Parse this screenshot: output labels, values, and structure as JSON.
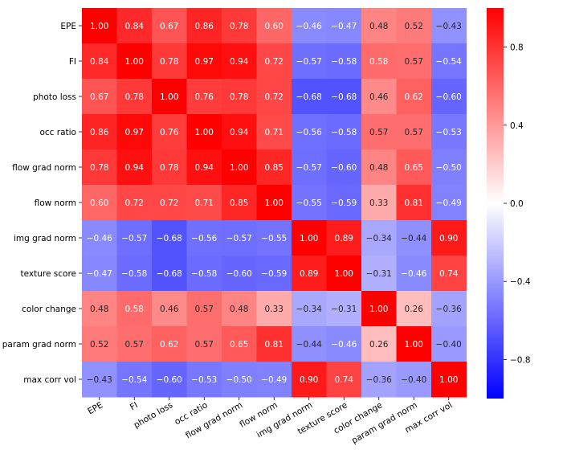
{
  "chart_data": {
    "type": "heatmap",
    "title": "",
    "xlabel": "",
    "ylabel": "",
    "labels": [
      "EPE",
      "FI",
      "photo loss",
      "occ ratio",
      "flow grad norm",
      "flow norm",
      "img grad norm",
      "texture score",
      "color change",
      "param grad norm",
      "max corr vol"
    ],
    "values": [
      [
        1.0,
        0.84,
        0.67,
        0.86,
        0.78,
        0.6,
        -0.46,
        -0.47,
        0.48,
        0.52,
        -0.43
      ],
      [
        0.84,
        1.0,
        0.78,
        0.97,
        0.94,
        0.72,
        -0.57,
        -0.58,
        0.58,
        0.57,
        -0.54
      ],
      [
        0.67,
        0.78,
        1.0,
        0.76,
        0.78,
        0.72,
        -0.68,
        -0.68,
        0.46,
        0.62,
        -0.6
      ],
      [
        0.86,
        0.97,
        0.76,
        1.0,
        0.94,
        0.71,
        -0.56,
        -0.58,
        0.57,
        0.57,
        -0.53
      ],
      [
        0.78,
        0.94,
        0.78,
        0.94,
        1.0,
        0.85,
        -0.57,
        -0.6,
        0.48,
        0.65,
        -0.5
      ],
      [
        0.6,
        0.72,
        0.72,
        0.71,
        0.85,
        1.0,
        -0.55,
        -0.59,
        0.33,
        0.81,
        -0.49
      ],
      [
        -0.46,
        -0.57,
        -0.68,
        -0.56,
        -0.57,
        -0.55,
        1.0,
        0.89,
        -0.34,
        -0.44,
        0.9
      ],
      [
        -0.47,
        -0.58,
        -0.68,
        -0.58,
        -0.6,
        -0.59,
        0.89,
        1.0,
        -0.31,
        -0.46,
        0.74
      ],
      [
        0.48,
        0.58,
        0.46,
        0.57,
        0.48,
        0.33,
        -0.34,
        -0.31,
        1.0,
        0.26,
        -0.36
      ],
      [
        0.52,
        0.57,
        0.62,
        0.57,
        0.65,
        0.81,
        -0.44,
        -0.46,
        0.26,
        1.0,
        -0.4
      ],
      [
        -0.43,
        -0.54,
        -0.6,
        -0.53,
        -0.5,
        -0.49,
        0.9,
        0.74,
        -0.36,
        -0.4,
        1.0
      ]
    ],
    "vmin": -1.0,
    "vmax": 1.0,
    "colormap": "bwr",
    "colors": {
      "low": "#0000ff",
      "mid": "#ffffff",
      "high": "#ff0000"
    },
    "colorbar_ticks": [
      "0.8",
      "0.4",
      "0.0",
      "−0.4",
      "−0.8"
    ],
    "colorbar_tick_values": [
      0.8,
      0.4,
      0.0,
      -0.4,
      -0.8
    ],
    "annotation_format": "2 decimals",
    "x_tick_rotation": "30deg"
  }
}
